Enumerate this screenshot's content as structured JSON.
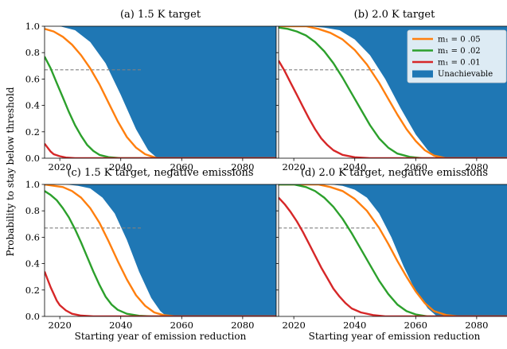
{
  "chart_data": {
    "type": "line",
    "ylabel": "Probability to stay below threshold",
    "xlabel": "Starting year of emission reduction",
    "xlim": [
      2015,
      2091
    ],
    "ylim": [
      0,
      1.0
    ],
    "xticks": [
      2020,
      2040,
      2060,
      2080
    ],
    "yticks": [
      0.0,
      0.2,
      0.4,
      0.6,
      0.8,
      1.0
    ],
    "threshold": {
      "y": 0.67,
      "x_end": 2047,
      "color": "#808080",
      "style": "dashed"
    },
    "colors": {
      "unachievable": "#1f77b4",
      "m05": "#ff7f0e",
      "m02": "#2ca02c",
      "m01": "#d62728"
    },
    "legend": {
      "placement": "top-right",
      "panel": 1,
      "entries": [
        {
          "label": "m₁ = 0 .05",
          "key": "m05"
        },
        {
          "label": "m₁ = 0 .02",
          "key": "m02"
        },
        {
          "label": "m₁ = 0 .01",
          "key": "m01"
        },
        {
          "label": "Unachievable",
          "key": "unachievable"
        }
      ]
    },
    "panels": [
      {
        "title": "(a)  1.5 K target",
        "unachievable": [
          [
            2015,
            1.0
          ],
          [
            2020,
            1.0
          ],
          [
            2025,
            0.97
          ],
          [
            2030,
            0.88
          ],
          [
            2035,
            0.72
          ],
          [
            2040,
            0.48
          ],
          [
            2045,
            0.22
          ],
          [
            2049,
            0.06
          ],
          [
            2052,
            0.0
          ],
          [
            2091,
            0.0
          ]
        ],
        "series": [
          {
            "key": "m05",
            "points": [
              [
                2015,
                0.98
              ],
              [
                2018,
                0.96
              ],
              [
                2021,
                0.92
              ],
              [
                2024,
                0.86
              ],
              [
                2027,
                0.78
              ],
              [
                2030,
                0.68
              ],
              [
                2033,
                0.56
              ],
              [
                2036,
                0.42
              ],
              [
                2039,
                0.28
              ],
              [
                2042,
                0.16
              ],
              [
                2045,
                0.08
              ],
              [
                2048,
                0.03
              ],
              [
                2052,
                0.0
              ],
              [
                2091,
                0.0
              ]
            ]
          },
          {
            "key": "m02",
            "points": [
              [
                2015,
                0.77
              ],
              [
                2017,
                0.68
              ],
              [
                2019,
                0.57
              ],
              [
                2021,
                0.46
              ],
              [
                2023,
                0.35
              ],
              [
                2025,
                0.25
              ],
              [
                2027,
                0.17
              ],
              [
                2029,
                0.1
              ],
              [
                2031,
                0.055
              ],
              [
                2033,
                0.025
              ],
              [
                2036,
                0.008
              ],
              [
                2040,
                0.0
              ],
              [
                2091,
                0.0
              ]
            ]
          },
          {
            "key": "m01",
            "points": [
              [
                2015,
                0.11
              ],
              [
                2016,
                0.08
              ],
              [
                2017,
                0.05
              ],
              [
                2018,
                0.03
              ],
              [
                2020,
                0.015
              ],
              [
                2022,
                0.005
              ],
              [
                2025,
                0.0
              ],
              [
                2091,
                0.0
              ]
            ]
          }
        ]
      },
      {
        "title": "(b)  2.0 K target",
        "unachievable": [
          [
            2015,
            1.0
          ],
          [
            2025,
            1.0
          ],
          [
            2030,
            0.99
          ],
          [
            2035,
            0.97
          ],
          [
            2040,
            0.9
          ],
          [
            2045,
            0.78
          ],
          [
            2050,
            0.6
          ],
          [
            2055,
            0.38
          ],
          [
            2060,
            0.18
          ],
          [
            2064,
            0.06
          ],
          [
            2067,
            0.0
          ],
          [
            2091,
            0.0
          ]
        ],
        "series": [
          {
            "key": "m05",
            "points": [
              [
                2015,
                1.0
              ],
              [
                2024,
                1.0
              ],
              [
                2028,
                0.98
              ],
              [
                2032,
                0.95
              ],
              [
                2036,
                0.9
              ],
              [
                2040,
                0.82
              ],
              [
                2044,
                0.71
              ],
              [
                2048,
                0.57
              ],
              [
                2051,
                0.45
              ],
              [
                2054,
                0.33
              ],
              [
                2057,
                0.22
              ],
              [
                2060,
                0.13
              ],
              [
                2063,
                0.06
              ],
              [
                2066,
                0.02
              ],
              [
                2070,
                0.0
              ],
              [
                2091,
                0.0
              ]
            ]
          },
          {
            "key": "m02",
            "points": [
              [
                2015,
                0.99
              ],
              [
                2018,
                0.98
              ],
              [
                2021,
                0.96
              ],
              [
                2024,
                0.93
              ],
              [
                2027,
                0.88
              ],
              [
                2030,
                0.81
              ],
              [
                2033,
                0.72
              ],
              [
                2036,
                0.61
              ],
              [
                2039,
                0.49
              ],
              [
                2042,
                0.37
              ],
              [
                2045,
                0.25
              ],
              [
                2048,
                0.15
              ],
              [
                2051,
                0.08
              ],
              [
                2054,
                0.035
              ],
              [
                2058,
                0.01
              ],
              [
                2062,
                0.0
              ],
              [
                2091,
                0.0
              ]
            ]
          },
          {
            "key": "m01",
            "points": [
              [
                2015,
                0.74
              ],
              [
                2017,
                0.66
              ],
              [
                2019,
                0.57
              ],
              [
                2021,
                0.48
              ],
              [
                2023,
                0.39
              ],
              [
                2025,
                0.3
              ],
              [
                2027,
                0.22
              ],
              [
                2029,
                0.15
              ],
              [
                2031,
                0.1
              ],
              [
                2033,
                0.06
              ],
              [
                2036,
                0.025
              ],
              [
                2040,
                0.007
              ],
              [
                2045,
                0.0
              ],
              [
                2091,
                0.0
              ]
            ]
          }
        ]
      },
      {
        "title": "(c)  1.5 K target, negative emissions",
        "unachievable": [
          [
            2015,
            1.0
          ],
          [
            2022,
            1.0
          ],
          [
            2026,
            0.99
          ],
          [
            2030,
            0.97
          ],
          [
            2034,
            0.9
          ],
          [
            2038,
            0.78
          ],
          [
            2042,
            0.58
          ],
          [
            2046,
            0.34
          ],
          [
            2050,
            0.14
          ],
          [
            2053,
            0.04
          ],
          [
            2055,
            0.0
          ],
          [
            2091,
            0.0
          ]
        ],
        "series": [
          {
            "key": "m05",
            "points": [
              [
                2015,
                1.0
              ],
              [
                2018,
                0.99
              ],
              [
                2021,
                0.98
              ],
              [
                2024,
                0.95
              ],
              [
                2027,
                0.9
              ],
              [
                2030,
                0.82
              ],
              [
                2033,
                0.71
              ],
              [
                2036,
                0.57
              ],
              [
                2039,
                0.42
              ],
              [
                2042,
                0.28
              ],
              [
                2045,
                0.16
              ],
              [
                2048,
                0.08
              ],
              [
                2051,
                0.03
              ],
              [
                2054,
                0.01
              ],
              [
                2058,
                0.0
              ],
              [
                2091,
                0.0
              ]
            ]
          },
          {
            "key": "m02",
            "points": [
              [
                2015,
                0.95
              ],
              [
                2017,
                0.92
              ],
              [
                2019,
                0.88
              ],
              [
                2021,
                0.82
              ],
              [
                2023,
                0.75
              ],
              [
                2025,
                0.66
              ],
              [
                2027,
                0.56
              ],
              [
                2029,
                0.45
              ],
              [
                2031,
                0.34
              ],
              [
                2033,
                0.24
              ],
              [
                2035,
                0.15
              ],
              [
                2037,
                0.09
              ],
              [
                2039,
                0.05
              ],
              [
                2042,
                0.02
              ],
              [
                2046,
                0.005
              ],
              [
                2050,
                0.0
              ],
              [
                2091,
                0.0
              ]
            ]
          },
          {
            "key": "m01",
            "points": [
              [
                2015,
                0.34
              ],
              [
                2016,
                0.28
              ],
              [
                2017,
                0.22
              ],
              [
                2018,
                0.17
              ],
              [
                2019,
                0.12
              ],
              [
                2020,
                0.085
              ],
              [
                2022,
                0.045
              ],
              [
                2024,
                0.02
              ],
              [
                2027,
                0.006
              ],
              [
                2031,
                0.0
              ],
              [
                2091,
                0.0
              ]
            ]
          }
        ]
      },
      {
        "title": "(d)  2.0 K target, negative emissions",
        "unachievable": [
          [
            2015,
            1.0
          ],
          [
            2032,
            1.0
          ],
          [
            2036,
            0.99
          ],
          [
            2040,
            0.96
          ],
          [
            2044,
            0.9
          ],
          [
            2048,
            0.78
          ],
          [
            2052,
            0.6
          ],
          [
            2056,
            0.38
          ],
          [
            2060,
            0.19
          ],
          [
            2064,
            0.06
          ],
          [
            2067,
            0.0
          ],
          [
            2091,
            0.0
          ]
        ],
        "series": [
          {
            "key": "m05",
            "points": [
              [
                2015,
                1.0
              ],
              [
                2028,
                1.0
              ],
              [
                2032,
                0.98
              ],
              [
                2036,
                0.95
              ],
              [
                2040,
                0.89
              ],
              [
                2044,
                0.8
              ],
              [
                2048,
                0.67
              ],
              [
                2051,
                0.55
              ],
              [
                2054,
                0.42
              ],
              [
                2057,
                0.3
              ],
              [
                2060,
                0.19
              ],
              [
                2063,
                0.1
              ],
              [
                2066,
                0.04
              ],
              [
                2070,
                0.01
              ],
              [
                2074,
                0.0
              ],
              [
                2091,
                0.0
              ]
            ]
          },
          {
            "key": "m02",
            "points": [
              [
                2015,
                1.0
              ],
              [
                2020,
                1.0
              ],
              [
                2024,
                0.98
              ],
              [
                2027,
                0.95
              ],
              [
                2030,
                0.9
              ],
              [
                2033,
                0.83
              ],
              [
                2036,
                0.74
              ],
              [
                2039,
                0.63
              ],
              [
                2042,
                0.51
              ],
              [
                2045,
                0.39
              ],
              [
                2048,
                0.27
              ],
              [
                2051,
                0.17
              ],
              [
                2054,
                0.09
              ],
              [
                2057,
                0.04
              ],
              [
                2060,
                0.015
              ],
              [
                2064,
                0.0
              ],
              [
                2091,
                0.0
              ]
            ]
          },
          {
            "key": "m01",
            "points": [
              [
                2015,
                0.9
              ],
              [
                2017,
                0.85
              ],
              [
                2019,
                0.79
              ],
              [
                2021,
                0.72
              ],
              [
                2023,
                0.64
              ],
              [
                2025,
                0.55
              ],
              [
                2027,
                0.46
              ],
              [
                2029,
                0.37
              ],
              [
                2031,
                0.29
              ],
              [
                2033,
                0.21
              ],
              [
                2035,
                0.15
              ],
              [
                2037,
                0.1
              ],
              [
                2039,
                0.06
              ],
              [
                2042,
                0.03
              ],
              [
                2046,
                0.01
              ],
              [
                2050,
                0.0
              ],
              [
                2091,
                0.0
              ]
            ]
          }
        ]
      }
    ]
  }
}
